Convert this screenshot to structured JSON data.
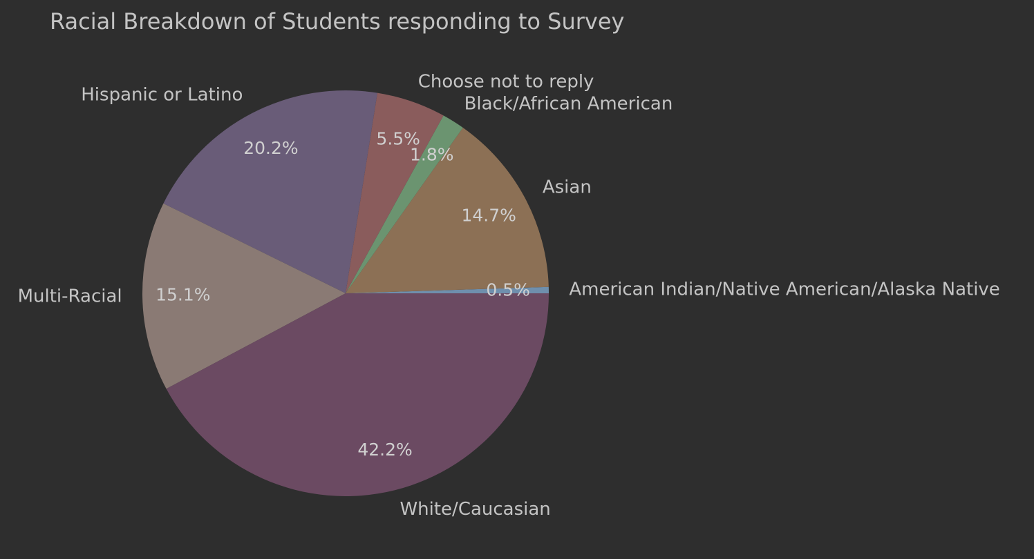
{
  "chart_data": {
    "type": "pie",
    "title": "Racial Breakdown of Students responding to Survey",
    "start_angle_deg": 0,
    "direction": "counterclockwise",
    "slices": [
      {
        "label": "American Indian/Native American/Alaska Native",
        "value": 0.5,
        "pct_text": "0.5%",
        "color": "#6f8fad"
      },
      {
        "label": "Asian",
        "value": 14.7,
        "pct_text": "14.7%",
        "color": "#8c7055"
      },
      {
        "label": "Black/African American",
        "value": 1.8,
        "pct_text": "1.8%",
        "color": "#6b9470"
      },
      {
        "label": "Choose not to reply",
        "value": 5.5,
        "pct_text": "5.5%",
        "color": "#8a5c5c"
      },
      {
        "label": "Hispanic or Latino",
        "value": 20.2,
        "pct_text": "20.2%",
        "color": "#695c78"
      },
      {
        "label": "Multi-Racial",
        "value": 15.1,
        "pct_text": "15.1%",
        "color": "#8a7a74"
      },
      {
        "label": "White/Caucasian",
        "value": 42.2,
        "pct_text": "42.2%",
        "color": "#6b4a62"
      }
    ]
  }
}
